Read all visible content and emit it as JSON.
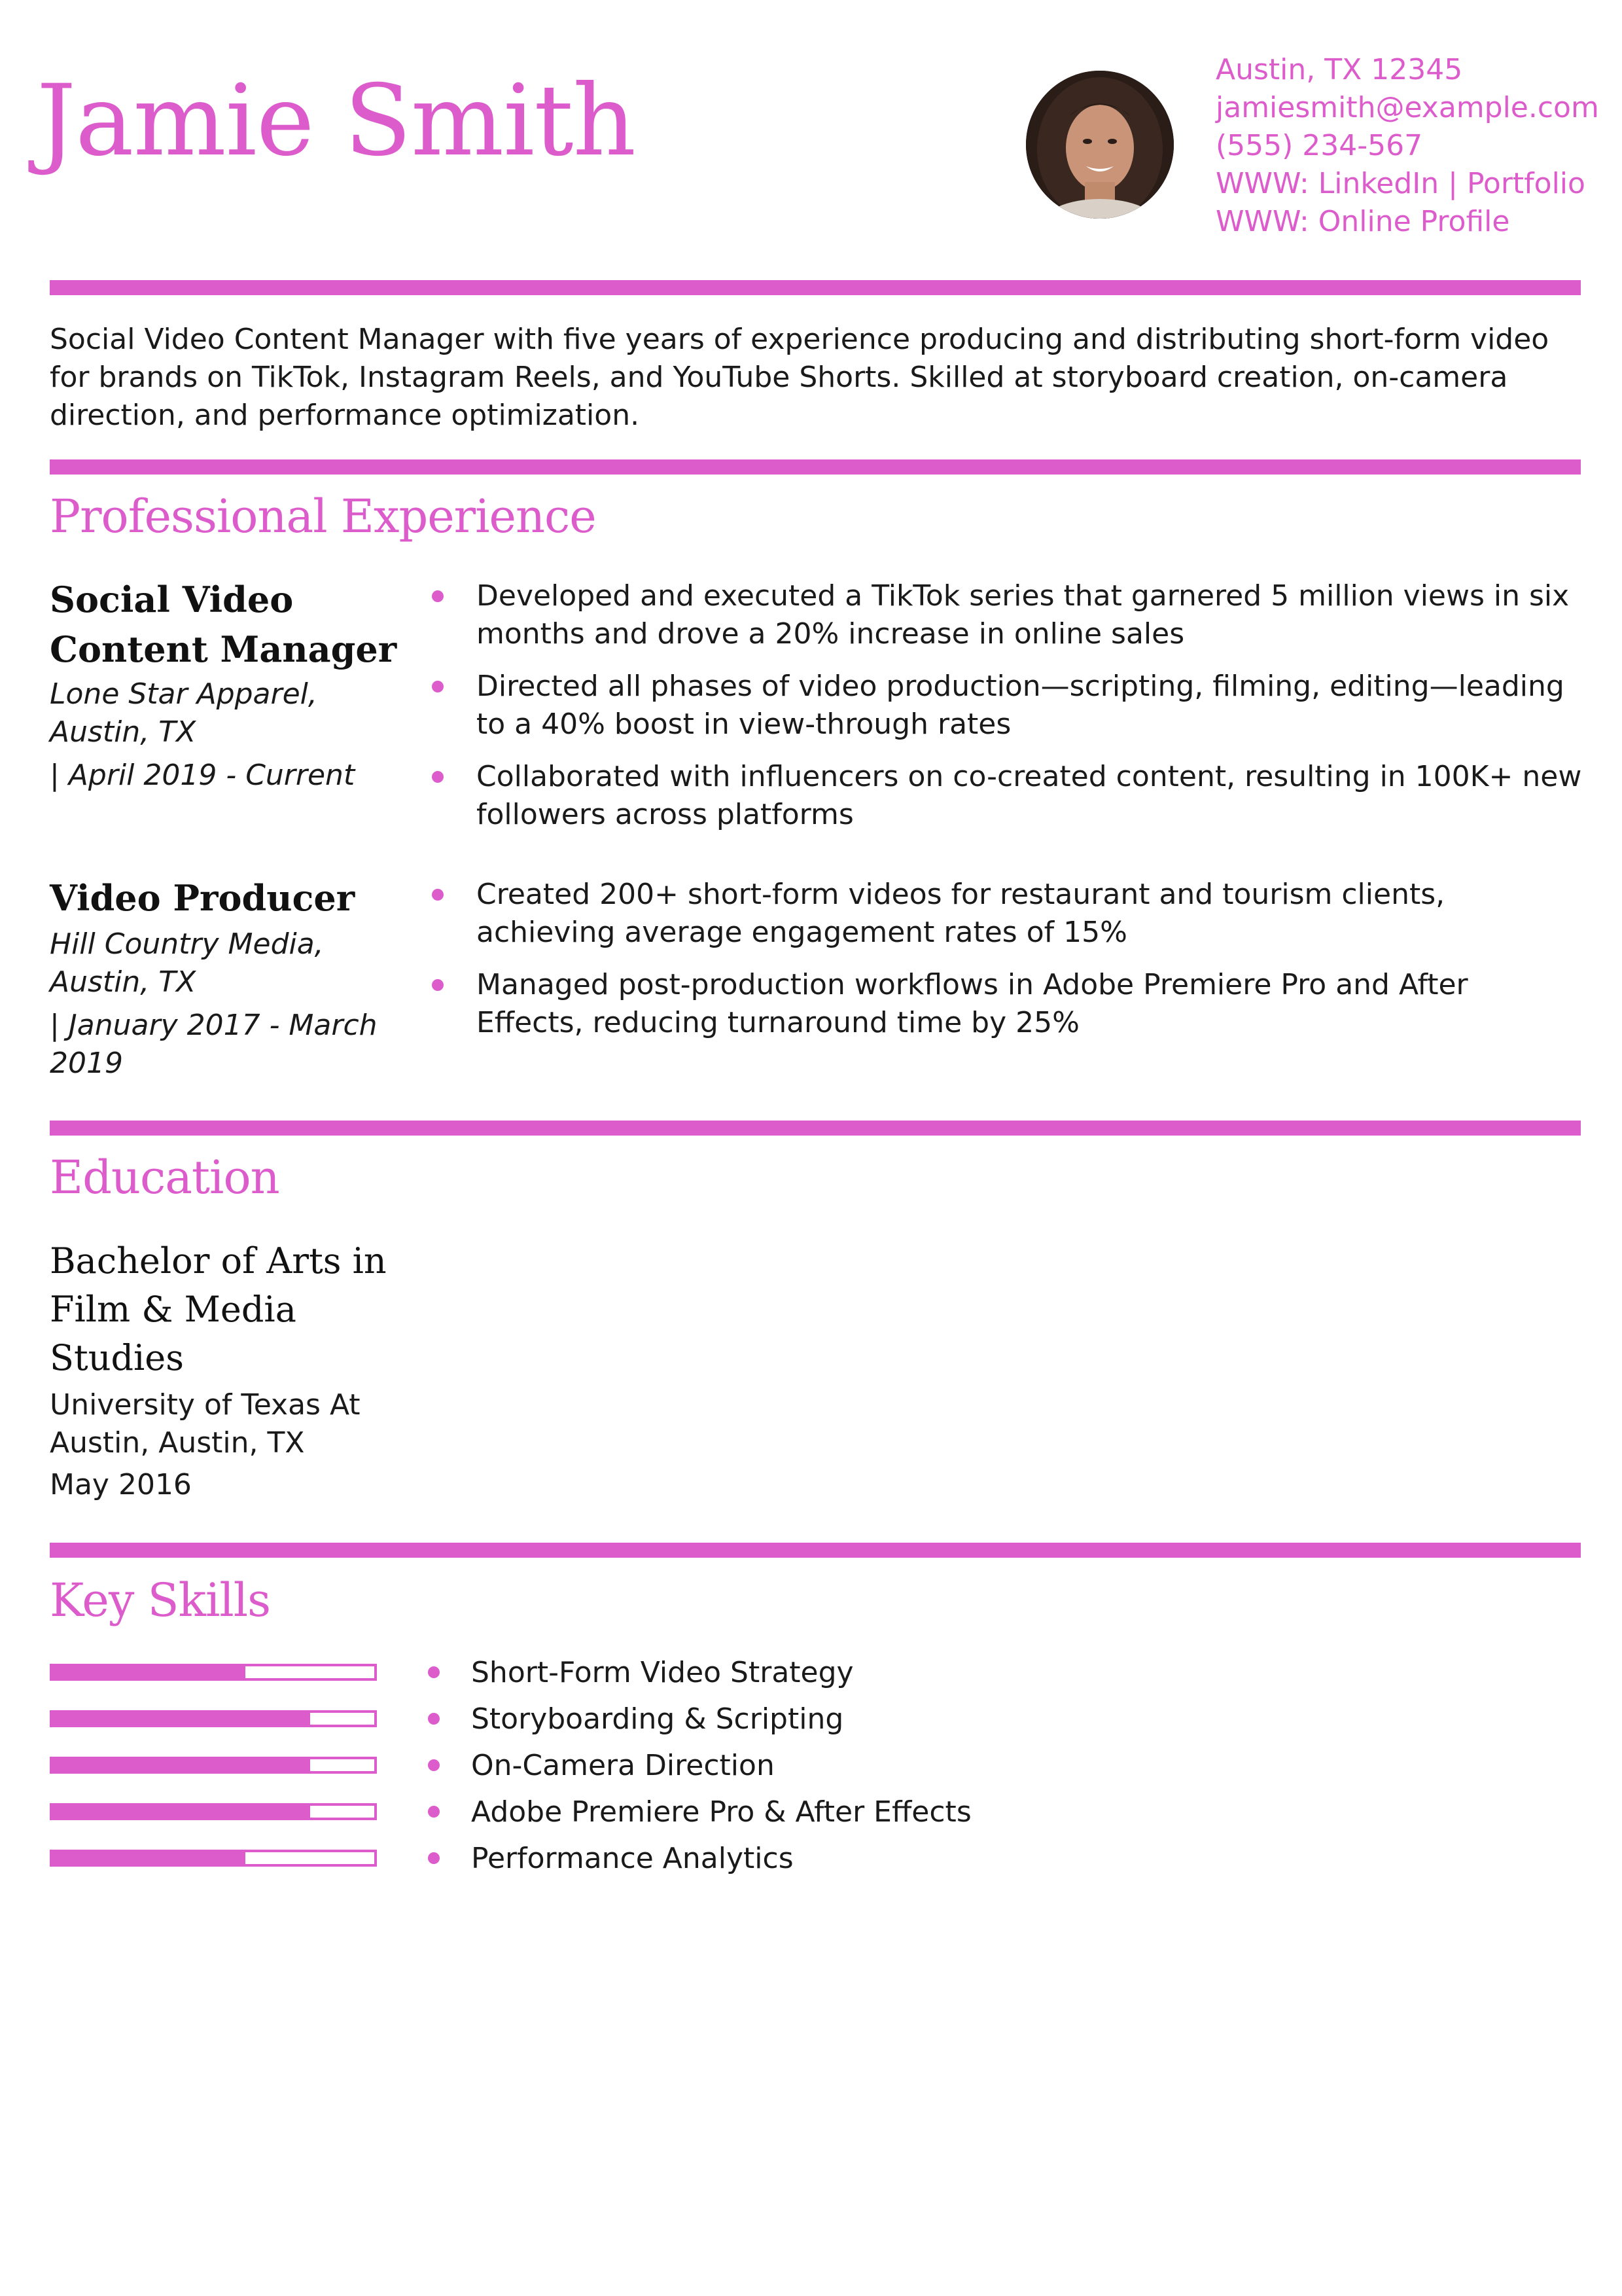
{
  "header": {
    "name": "Jamie Smith",
    "contact": [
      "Austin, TX 12345",
      "jamiesmith@example.com",
      "(555) 234-567",
      "WWW: LinkedIn | Portfolio",
      "WWW: Online Profile"
    ]
  },
  "summary": "Social Video Content Manager with five years of experience producing and distributing short-form video for brands on TikTok, Instagram Reels, and YouTube Shorts. Skilled at storyboard creation, on-camera direction, and performance optimization.",
  "experience": {
    "heading": "Professional Experience",
    "jobs": [
      {
        "title": "Social Video Content Manager",
        "company": "Lone Star Apparel,",
        "location": "Austin, TX",
        "dates": "| April 2019 - Current",
        "bullets": [
          "Developed and executed a TikTok series that garnered 5 million views in six months and drove a 20% increase in online sales",
          "Directed all phases of video production—scripting, filming, editing—leading to a 40% boost in view-through rates",
          "Collaborated with influencers on co-created content, resulting in 100K+ new followers across platforms"
        ]
      },
      {
        "title": "Video Producer",
        "company": "Hill Country Media,",
        "location": "Austin, TX",
        "dates": "| January 2017 - March 2019",
        "bullets": [
          "Created 200+ short-form videos for restaurant and tourism clients, achieving average engagement rates of 15%",
          "Managed post-production workflows in Adobe Premiere Pro and After Effects, reducing turnaround time by 25%"
        ]
      }
    ]
  },
  "education": {
    "heading": "Education",
    "degree": "Bachelor of Arts in Film & Media Studies",
    "school": "University of Texas At Austin, Austin, TX",
    "date": "May 2016"
  },
  "skills": {
    "heading": "Key Skills",
    "items": [
      {
        "name": "Short-Form Video Strategy",
        "level": 0.6
      },
      {
        "name": "Storyboarding & Scripting",
        "level": 0.8
      },
      {
        "name": "On-Camera Direction",
        "level": 0.8
      },
      {
        "name": "Adobe Premiere Pro & After Effects",
        "level": 0.8
      },
      {
        "name": "Performance Analytics",
        "level": 0.6
      }
    ]
  },
  "colors": {
    "accent": "#dd5ccc",
    "text": "#1a1a1a"
  }
}
